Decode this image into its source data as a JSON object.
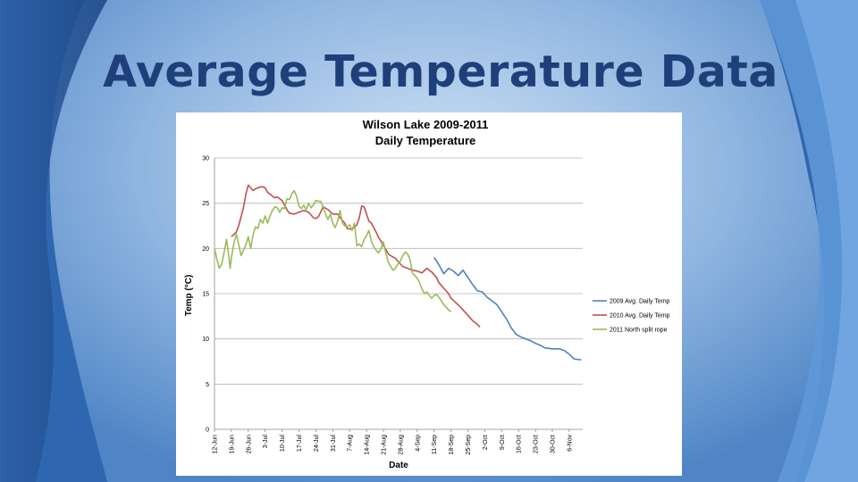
{
  "slide": {
    "title": "Average Temperature Data"
  },
  "chart_data": {
    "type": "line",
    "title_lines": [
      "Wilson Lake 2009-2011",
      "Daily Temperature"
    ],
    "xlabel": "Date",
    "ylabel": "Temp (°C)",
    "ylim": [
      0,
      30
    ],
    "y_ticks": [
      0,
      5,
      10,
      15,
      20,
      25,
      30
    ],
    "grid": true,
    "legend_position": "right",
    "x_ticks": [
      "12-Jun",
      "19-Jun",
      "26-Jun",
      "3-Jul",
      "10-Jul",
      "17-Jul",
      "24-Jul",
      "31-Jul",
      "7-Aug",
      "14-Aug",
      "21-Aug",
      "28-Aug",
      "4-Sep",
      "11-Sep",
      "18-Sep",
      "25-Sep",
      "2-Oct",
      "9-Oct",
      "16-Oct",
      "23-Oct",
      "30-Oct",
      "6-Nov"
    ],
    "series": [
      {
        "name": "2009 Avg. Daily Temp",
        "color": "#4f81bd",
        "points": [
          [
            91,
            19.0
          ],
          [
            93,
            18.2
          ],
          [
            95,
            17.2
          ],
          [
            97,
            17.8
          ],
          [
            99,
            17.5
          ],
          [
            101,
            17.0
          ],
          [
            103,
            17.6
          ],
          [
            105,
            16.8
          ],
          [
            107,
            16.0
          ],
          [
            109,
            15.3
          ],
          [
            111,
            15.2
          ],
          [
            113,
            14.6
          ],
          [
            115,
            14.2
          ],
          [
            117,
            13.8
          ],
          [
            119,
            13.0
          ],
          [
            121,
            12.2
          ],
          [
            123,
            11.2
          ],
          [
            125,
            10.5
          ],
          [
            127,
            10.2
          ],
          [
            129,
            10.0
          ],
          [
            131,
            9.8
          ],
          [
            133,
            9.5
          ],
          [
            135,
            9.3
          ],
          [
            137,
            9.0
          ],
          [
            140,
            8.9
          ],
          [
            143,
            8.9
          ],
          [
            145,
            8.7
          ],
          [
            147,
            8.3
          ],
          [
            149,
            7.8
          ],
          [
            151,
            7.7
          ],
          [
            152,
            7.7
          ]
        ]
      },
      {
        "name": "2010 Avg. Daily Temp",
        "color": "#c0504d",
        "points": [
          [
            7,
            21.3
          ],
          [
            9,
            21.8
          ],
          [
            10,
            22.5
          ],
          [
            11,
            23.5
          ],
          [
            12,
            24.5
          ],
          [
            13,
            26.0
          ],
          [
            14,
            27.0
          ],
          [
            15,
            26.7
          ],
          [
            16,
            26.4
          ],
          [
            17,
            26.6
          ],
          [
            19,
            26.8
          ],
          [
            20,
            26.8
          ],
          [
            21,
            26.7
          ],
          [
            22,
            26.2
          ],
          [
            24,
            25.8
          ],
          [
            25,
            25.6
          ],
          [
            26,
            25.7
          ],
          [
            28,
            25.3
          ],
          [
            30,
            24.3
          ],
          [
            31,
            23.9
          ],
          [
            33,
            23.8
          ],
          [
            35,
            24.0
          ],
          [
            37,
            24.2
          ],
          [
            39,
            24.0
          ],
          [
            41,
            23.4
          ],
          [
            42,
            23.3
          ],
          [
            43,
            23.5
          ],
          [
            44,
            24.0
          ],
          [
            45,
            24.6
          ],
          [
            47,
            24.3
          ],
          [
            49,
            23.8
          ],
          [
            51,
            23.8
          ],
          [
            52,
            23.4
          ],
          [
            54,
            22.8
          ],
          [
            55,
            22.2
          ],
          [
            57,
            22.1
          ],
          [
            58,
            22.4
          ],
          [
            59,
            22.6
          ],
          [
            60,
            23.4
          ],
          [
            61,
            24.7
          ],
          [
            62,
            24.6
          ],
          [
            63,
            23.8
          ],
          [
            64,
            23.0
          ],
          [
            65,
            22.8
          ],
          [
            66,
            22.3
          ],
          [
            67,
            21.8
          ],
          [
            68,
            21.2
          ],
          [
            69,
            20.8
          ],
          [
            70,
            20.3
          ],
          [
            71,
            19.9
          ],
          [
            72,
            19.4
          ],
          [
            73,
            19.2
          ],
          [
            75,
            18.9
          ],
          [
            77,
            18.3
          ],
          [
            78,
            18.0
          ],
          [
            80,
            17.8
          ],
          [
            82,
            17.6
          ],
          [
            84,
            17.5
          ],
          [
            86,
            17.3
          ],
          [
            88,
            17.8
          ],
          [
            90,
            17.4
          ],
          [
            92,
            16.8
          ],
          [
            93,
            16.2
          ],
          [
            95,
            15.6
          ],
          [
            97,
            15.0
          ],
          [
            98,
            14.5
          ],
          [
            100,
            14.0
          ],
          [
            102,
            13.5
          ],
          [
            103,
            13.2
          ],
          [
            105,
            12.6
          ],
          [
            107,
            12.0
          ],
          [
            109,
            11.6
          ],
          [
            110,
            11.3
          ]
        ]
      },
      {
        "name": "2011 North split rope",
        "color": "#9bbb59",
        "points": [
          [
            0,
            20.0
          ],
          [
            1,
            18.8
          ],
          [
            2,
            17.8
          ],
          [
            3,
            18.3
          ],
          [
            4,
            19.6
          ],
          [
            5,
            21.0
          ],
          [
            6,
            19.0
          ],
          [
            6.5,
            17.8
          ],
          [
            7,
            19.0
          ],
          [
            8,
            20.5
          ],
          [
            9,
            21.6
          ],
          [
            10,
            20.5
          ],
          [
            11,
            19.2
          ],
          [
            12,
            19.8
          ],
          [
            13,
            20.4
          ],
          [
            14,
            21.3
          ],
          [
            15,
            20.0
          ],
          [
            16,
            21.5
          ],
          [
            17,
            22.4
          ],
          [
            18,
            22.2
          ],
          [
            19,
            23.2
          ],
          [
            20,
            22.8
          ],
          [
            21,
            23.6
          ],
          [
            22,
            22.8
          ],
          [
            23,
            23.6
          ],
          [
            24,
            24.2
          ],
          [
            25,
            24.6
          ],
          [
            26,
            24.5
          ],
          [
            27,
            24.0
          ],
          [
            28,
            24.5
          ],
          [
            29,
            24.4
          ],
          [
            30,
            25.5
          ],
          [
            31,
            25.4
          ],
          [
            32,
            26.0
          ],
          [
            33,
            26.4
          ],
          [
            34,
            25.8
          ],
          [
            35,
            24.7
          ],
          [
            36,
            24.4
          ],
          [
            37,
            24.8
          ],
          [
            38,
            24.3
          ],
          [
            39,
            25.0
          ],
          [
            40,
            24.5
          ],
          [
            41,
            24.8
          ],
          [
            42,
            25.3
          ],
          [
            43,
            25.2
          ],
          [
            44,
            25.2
          ],
          [
            45,
            24.6
          ],
          [
            46,
            23.8
          ],
          [
            47,
            23.2
          ],
          [
            48,
            23.8
          ],
          [
            49,
            22.8
          ],
          [
            50,
            22.3
          ],
          [
            51,
            23.0
          ],
          [
            52,
            24.2
          ],
          [
            53,
            22.8
          ],
          [
            54,
            22.5
          ],
          [
            55,
            22.4
          ],
          [
            56,
            22.6
          ],
          [
            57,
            22.0
          ],
          [
            58,
            22.8
          ],
          [
            59,
            20.3
          ],
          [
            60,
            20.5
          ],
          [
            61,
            20.2
          ],
          [
            62,
            21.0
          ],
          [
            63,
            21.4
          ],
          [
            64,
            22.0
          ],
          [
            65,
            20.8
          ],
          [
            66,
            20.2
          ],
          [
            67,
            19.8
          ],
          [
            68,
            19.5
          ],
          [
            69,
            20.0
          ],
          [
            70,
            20.7
          ],
          [
            71,
            19.5
          ],
          [
            72,
            18.5
          ],
          [
            73,
            18.0
          ],
          [
            74,
            17.6
          ],
          [
            75,
            17.8
          ],
          [
            76,
            18.3
          ],
          [
            77,
            18.6
          ],
          [
            78,
            19.2
          ],
          [
            79,
            19.6
          ],
          [
            80,
            19.4
          ],
          [
            81,
            18.8
          ],
          [
            82,
            17.3
          ],
          [
            83,
            17.0
          ],
          [
            84,
            16.7
          ],
          [
            85,
            16.2
          ],
          [
            86,
            15.5
          ],
          [
            87,
            15.0
          ],
          [
            88,
            15.2
          ],
          [
            89,
            14.8
          ],
          [
            90,
            14.5
          ],
          [
            91,
            14.8
          ],
          [
            92,
            14.9
          ],
          [
            93,
            14.6
          ],
          [
            94,
            14.2
          ],
          [
            95,
            13.8
          ],
          [
            96,
            13.5
          ],
          [
            97,
            13.2
          ],
          [
            98,
            13.0
          ]
        ]
      }
    ]
  }
}
